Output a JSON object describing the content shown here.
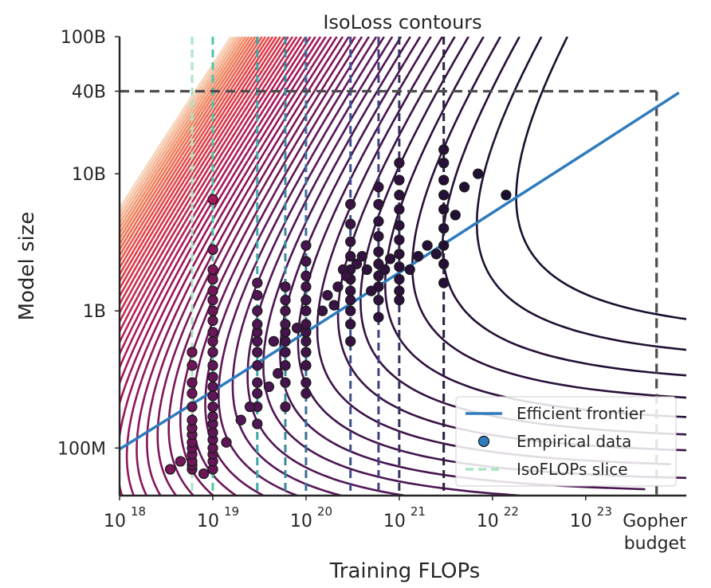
{
  "chart_data": {
    "type": "contour+scatter+line",
    "title": "IsoLoss contours",
    "xlabel": "Training FLOPs",
    "ylabel": "Model size",
    "xscale": "log",
    "yscale": "log",
    "xlim": [
      1e+18,
      1.2e+24
    ],
    "ylim": [
      45000000.0,
      100000000000.0
    ],
    "x_ticks": [
      {
        "value": 1e+18,
        "base": "10",
        "exp": "18"
      },
      {
        "value": 1e+19,
        "base": "10",
        "exp": "19"
      },
      {
        "value": 1e+20,
        "base": "10",
        "exp": "20"
      },
      {
        "value": 1e+21,
        "base": "10",
        "exp": "21"
      },
      {
        "value": 1e+22,
        "base": "10",
        "exp": "22"
      },
      {
        "value": 1e+23,
        "base": "10",
        "exp": "23"
      }
    ],
    "gopher_tick": {
      "value": 5.76e+23,
      "line1": "Gopher",
      "line2": "budget"
    },
    "y_ticks": [
      {
        "value": 100000000.0,
        "label": "100M"
      },
      {
        "value": 1000000000.0,
        "label": "1B"
      },
      {
        "value": 10000000000.0,
        "label": "10B"
      },
      {
        "value": 40000000000.0,
        "label": "40B"
      },
      {
        "value": 100000000000.0,
        "label": "100B"
      }
    ],
    "efficient_frontier": {
      "name": "Efficient frontier",
      "color": "#2f7bbd",
      "x": [
        1e+18,
        1e+19,
        1e+20,
        1e+21,
        1e+22,
        1e+23,
        1e+24
      ],
      "y": [
        98000000.0,
        260000000.0,
        700000000.0,
        1900000000.0,
        5200000000.0,
        14200000000.0,
        39000000000.0
      ]
    },
    "gopher_budget": {
      "flops": 5.76e+23,
      "params": 40000000000.0
    },
    "isoflops_slices": {
      "name": "IsoFLOPs slice",
      "flops": [
        6e+18,
        1e+19,
        3e+19,
        6e+19,
        1e+20,
        3e+20,
        6e+20,
        1e+21,
        3e+21
      ],
      "colors": [
        "#a8e6c0",
        "#52c7a7",
        "#3fa9a5",
        "#3a8a9e",
        "#3a6e96",
        "#3f4f8d",
        "#434080",
        "#38305f",
        "#2a1f3f"
      ]
    },
    "contour_model": {
      "E": 1.69,
      "A": 406.4,
      "B": 410.7,
      "alpha": 0.34,
      "beta": 0.28
    },
    "empirical_data": {
      "name": "Empirical data",
      "points": [
        [
          6e+18,
          70000000.0
        ],
        [
          6e+18,
          75000000.0
        ],
        [
          6e+18,
          80000000.0
        ],
        [
          6e+18,
          90000000.0
        ],
        [
          6e+18,
          100000000.0
        ],
        [
          6e+18,
          110000000.0
        ],
        [
          6e+18,
          125000000.0
        ],
        [
          6e+18,
          140000000.0
        ],
        [
          6e+18,
          160000000.0
        ],
        [
          6e+18,
          200000000.0
        ],
        [
          6e+18,
          250000000.0
        ],
        [
          6e+18,
          300000000.0
        ],
        [
          6e+18,
          400000000.0
        ],
        [
          6e+18,
          500000000.0
        ],
        [
          1e+19,
          70000000.0
        ],
        [
          1e+19,
          80000000.0
        ],
        [
          1e+19,
          90000000.0
        ],
        [
          1e+19,
          100000000.0
        ],
        [
          1e+19,
          115000000.0
        ],
        [
          1e+19,
          130000000.0
        ],
        [
          1e+19,
          150000000.0
        ],
        [
          1e+19,
          170000000.0
        ],
        [
          1e+19,
          200000000.0
        ],
        [
          1e+19,
          240000000.0
        ],
        [
          1e+19,
          280000000.0
        ],
        [
          1e+19,
          330000000.0
        ],
        [
          1e+19,
          400000000.0
        ],
        [
          1e+19,
          500000000.0
        ],
        [
          1e+19,
          600000000.0
        ],
        [
          1e+19,
          700000000.0
        ],
        [
          1e+19,
          850000000.0
        ],
        [
          1e+19,
          1000000000.0
        ],
        [
          1e+19,
          1200000000.0
        ],
        [
          1e+19,
          1400000000.0
        ],
        [
          1e+19,
          1700000000.0
        ],
        [
          1e+19,
          2000000000.0
        ],
        [
          1e+19,
          2800000000.0
        ],
        [
          1e+19,
          6500000000.0
        ],
        [
          3e+19,
          150000000.0
        ],
        [
          3e+19,
          200000000.0
        ],
        [
          3e+19,
          250000000.0
        ],
        [
          3e+19,
          300000000.0
        ],
        [
          3e+19,
          400000000.0
        ],
        [
          3e+19,
          500000000.0
        ],
        [
          3e+19,
          600000000.0
        ],
        [
          3e+19,
          700000000.0
        ],
        [
          3e+19,
          800000000.0
        ],
        [
          3e+19,
          1000000000.0
        ],
        [
          3e+19,
          1300000000.0
        ],
        [
          3e+19,
          1600000000.0
        ],
        [
          6e+19,
          200000000.0
        ],
        [
          6e+19,
          300000000.0
        ],
        [
          6e+19,
          400000000.0
        ],
        [
          6e+19,
          500000000.0
        ],
        [
          6e+19,
          600000000.0
        ],
        [
          6e+19,
          700000000.0
        ],
        [
          6e+19,
          800000000.0
        ],
        [
          6e+19,
          1000000000.0
        ],
        [
          6e+19,
          1200000000.0
        ],
        [
          6e+19,
          1500000000.0
        ],
        [
          1e+20,
          250000000.0
        ],
        [
          1e+20,
          300000000.0
        ],
        [
          1e+20,
          400000000.0
        ],
        [
          1e+20,
          500000000.0
        ],
        [
          1e+20,
          600000000.0
        ],
        [
          1e+20,
          700000000.0
        ],
        [
          1e+20,
          800000000.0
        ],
        [
          1e+20,
          1000000000.0
        ],
        [
          1e+20,
          1200000000.0
        ],
        [
          1e+20,
          1500000000.0
        ],
        [
          1e+20,
          1800000000.0
        ],
        [
          1e+20,
          2300000000.0
        ],
        [
          1e+20,
          3000000000.0
        ],
        [
          3e+20,
          600000000.0
        ],
        [
          3e+20,
          800000000.0
        ],
        [
          3e+20,
          1000000000.0
        ],
        [
          3e+20,
          1200000000.0
        ],
        [
          3e+20,
          1400000000.0
        ],
        [
          3e+20,
          1700000000.0
        ],
        [
          3e+20,
          2000000000.0
        ],
        [
          3e+20,
          2500000000.0
        ],
        [
          3e+20,
          3200000000.0
        ],
        [
          3e+20,
          4300000000.0
        ],
        [
          3e+20,
          6000000000.0
        ],
        [
          6e+20,
          900000000.0
        ],
        [
          6e+20,
          1200000000.0
        ],
        [
          6e+20,
          1500000000.0
        ],
        [
          6e+20,
          1800000000.0
        ],
        [
          6e+20,
          2200000000.0
        ],
        [
          6e+20,
          2700000000.0
        ],
        [
          6e+20,
          3500000000.0
        ],
        [
          6e+20,
          4500000000.0
        ],
        [
          6e+20,
          6000000000.0
        ],
        [
          6e+20,
          8000000000.0
        ],
        [
          1e+21,
          1200000000.0
        ],
        [
          1e+21,
          1400000000.0
        ],
        [
          1e+21,
          1700000000.0
        ],
        [
          1e+21,
          2100000000.0
        ],
        [
          1e+21,
          2600000000.0
        ],
        [
          1e+21,
          3300000000.0
        ],
        [
          1e+21,
          4200000000.0
        ],
        [
          1e+21,
          5500000000.0
        ],
        [
          1e+21,
          7000000000.0
        ],
        [
          1e+21,
          9000000000.0
        ],
        [
          1e+21,
          12000000000.0
        ],
        [
          3e+21,
          1600000000.0
        ],
        [
          3e+21,
          2200000000.0
        ],
        [
          3e+21,
          3000000000.0
        ],
        [
          3e+21,
          4000000000.0
        ],
        [
          3e+21,
          5500000000.0
        ],
        [
          3e+21,
          7000000000.0
        ],
        [
          3e+21,
          9000000000.0
        ],
        [
          3e+21,
          12000000000.0
        ],
        [
          3e+21,
          15000000000.0
        ],
        [
          3.5e+18,
          70000000.0
        ],
        [
          4.5e+18,
          80000000.0
        ],
        [
          8e+18,
          65000000.0
        ],
        [
          1.4e+19,
          110000000.0
        ],
        [
          2e+19,
          160000000.0
        ],
        [
          2.5e+19,
          200000000.0
        ],
        [
          4e+19,
          280000000.0
        ],
        [
          5e+19,
          350000000.0
        ],
        [
          4.5e+19,
          600000000.0
        ],
        [
          8e+19,
          750000000.0
        ],
        [
          1.5e+20,
          1000000000.0
        ],
        [
          1.7e+20,
          1300000000.0
        ],
        [
          2e+20,
          1100000000.0
        ],
        [
          2.2e+20,
          1500000000.0
        ],
        [
          2.5e+20,
          2000000000.0
        ],
        [
          2.7e+20,
          1800000000.0
        ],
        [
          3.5e+20,
          2200000000.0
        ],
        [
          4e+20,
          2500000000.0
        ],
        [
          4.5e+20,
          2000000000.0
        ],
        [
          5e+20,
          1400000000.0
        ],
        [
          7e+20,
          2000000000.0
        ],
        [
          8e+20,
          2400000000.0
        ],
        [
          1.3e+21,
          2000000000.0
        ],
        [
          1.6e+21,
          2500000000.0
        ],
        [
          2e+21,
          3000000000.0
        ],
        [
          2.5e+21,
          2600000000.0
        ],
        [
          4e+21,
          5000000000.0
        ],
        [
          5e+21,
          8000000000.0
        ],
        [
          7e+21,
          10000000000.0
        ],
        [
          1.4e+22,
          7000000000.0
        ]
      ]
    },
    "legend": {
      "placement": "lower-right",
      "entries": [
        "Efficient frontier",
        "Empirical data",
        "IsoFLOPs slice"
      ]
    },
    "colors": {
      "frontier": "#2f7bbd",
      "gopher_lines": "#4d4d4d",
      "axes": "#262626",
      "contour_low": "#1a0f2e",
      "contour_mid": "#a3165c",
      "contour_high": "#f5d0b5"
    }
  }
}
